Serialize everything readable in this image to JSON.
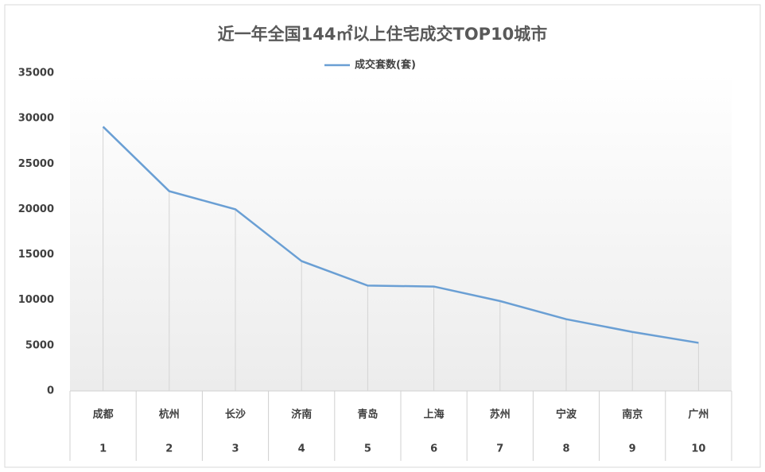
{
  "chart_data": {
    "type": "line",
    "title": "近一年全国144㎡以上住宅成交TOP10城市",
    "categories": [
      "成都",
      "杭州",
      "长沙",
      "济南",
      "青岛",
      "上海",
      "苏州",
      "宁波",
      "南京",
      "广州"
    ],
    "ranks": [
      1,
      2,
      3,
      4,
      5,
      6,
      7,
      8,
      9,
      10
    ],
    "series": [
      {
        "name": "成交套数(套)",
        "color": "#6a9fd4",
        "values": [
          29100,
          22000,
          20000,
          14300,
          11600,
          11500,
          9900,
          7900,
          6500,
          5300
        ]
      }
    ],
    "ylim": [
      0,
      35000
    ],
    "yticks": [
      0,
      5000,
      10000,
      15000,
      20000,
      25000,
      30000,
      35000
    ],
    "legend": "top"
  }
}
